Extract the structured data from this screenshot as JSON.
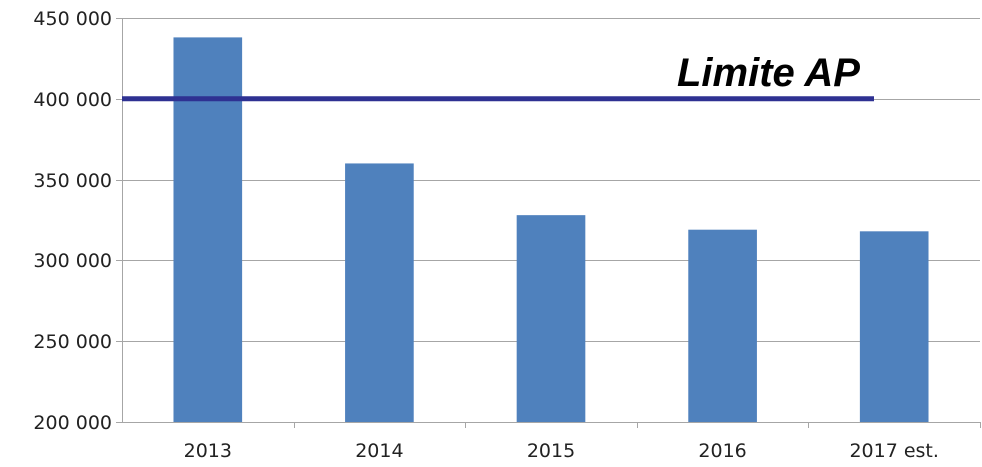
{
  "chart_data": {
    "type": "bar",
    "title": "",
    "xlabel": "",
    "ylabel": "",
    "categories": [
      "2013",
      "2014",
      "2015",
      "2016",
      "2017 est."
    ],
    "values": [
      438000,
      360000,
      328000,
      319000,
      318000
    ],
    "ylim": [
      200000,
      450000
    ],
    "yticks": [
      200000,
      250000,
      300000,
      350000,
      400000,
      450000
    ],
    "ytick_labels": [
      "200 000",
      "250 000",
      "300 000",
      "350 000",
      "400 000",
      "450 000"
    ],
    "grid": "horizontal",
    "legend": "none",
    "colors": {
      "bar": "#4F81BD",
      "reference_line": "#2E3192",
      "grid": "#A6A6A6"
    },
    "reference_line": {
      "value": 400000,
      "label": "Limite AP"
    }
  }
}
